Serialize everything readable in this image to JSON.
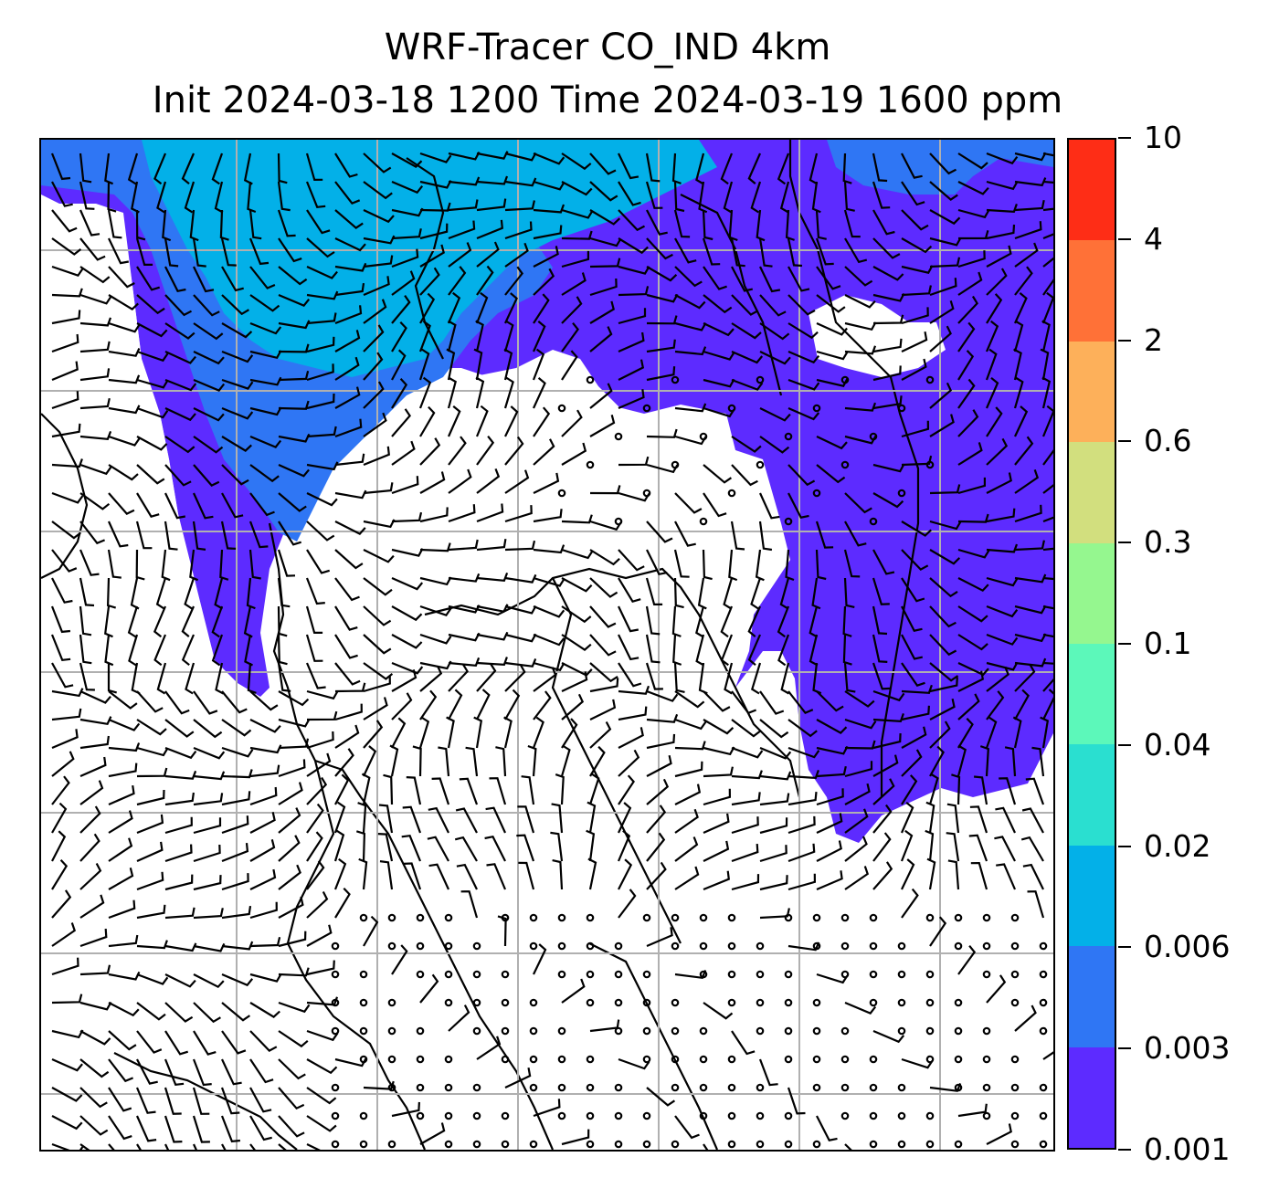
{
  "title": {
    "line1": "WRF-Tracer CO_IND 4km",
    "line2": "Init 2024-03-18 1200 Time 2024-03-19 1600 ppm"
  },
  "colorbar": {
    "levels": [
      "0.001",
      "0.003",
      "0.006",
      "0.02",
      "0.04",
      "0.1",
      "0.3",
      "0.6",
      "2",
      "4",
      "10"
    ],
    "colors": [
      "#5d2bff",
      "#2f76f4",
      "#03b0e8",
      "#2adfd0",
      "#5cf8ba",
      "#95f78f",
      "#d2df7e",
      "#fdb05a",
      "#ff7137",
      "#fe2d16"
    ]
  },
  "map": {
    "grid_color": "#b0b0b0",
    "coastline_color": "#000000",
    "barb_color": "#000000"
  }
}
